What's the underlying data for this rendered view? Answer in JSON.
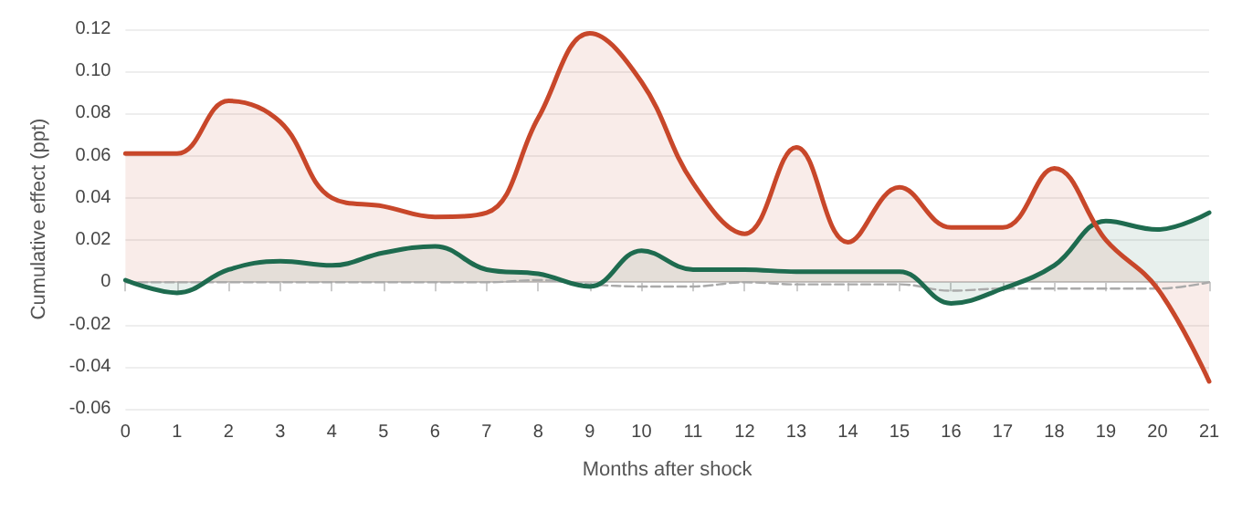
{
  "chart_data": {
    "type": "area",
    "xlabel": "Months after shock",
    "ylabel": "Cumulative effect (ppt)",
    "x": [
      0,
      1,
      2,
      3,
      4,
      5,
      6,
      7,
      8,
      9,
      10,
      11,
      12,
      13,
      14,
      15,
      16,
      17,
      18,
      19,
      20,
      21
    ],
    "series": [
      {
        "color": "#c8472a",
        "values": [
          0.061,
          0.061,
          0.086,
          0.076,
          0.04,
          0.036,
          0.031,
          0.033,
          0.078,
          0.118,
          0.095,
          0.047,
          0.023,
          0.064,
          0.019,
          0.045,
          0.026,
          0.026,
          0.054,
          0.02,
          -0.003,
          -0.047
        ]
      },
      {
        "color": "#1e6b4f",
        "values": [
          0.001,
          -0.005,
          0.006,
          0.01,
          0.008,
          0.014,
          0.017,
          0.006,
          0.004,
          -0.002,
          0.015,
          0.006,
          0.006,
          0.005,
          0.005,
          0.005,
          -0.01,
          -0.003,
          0.008,
          0.029,
          0.025,
          0.033
        ]
      },
      {
        "type": "line",
        "line_style": "dashed",
        "color": "#aaaaaa",
        "values": [
          0,
          0,
          0,
          0,
          0,
          0,
          0,
          0,
          0.001,
          -0.001,
          -0.002,
          -0.002,
          0,
          -0.001,
          -0.001,
          -0.001,
          -0.004,
          -0.003,
          -0.003,
          -0.003,
          -0.003,
          0
        ]
      }
    ],
    "xlim": [
      0,
      21
    ],
    "xticks": [
      0,
      1,
      2,
      3,
      4,
      5,
      6,
      7,
      8,
      9,
      10,
      11,
      12,
      13,
      14,
      15,
      16,
      17,
      18,
      19,
      20,
      21
    ],
    "ylim": [
      -0.06,
      0.12
    ],
    "yticks": [
      -0.06,
      -0.04,
      -0.02,
      0,
      0.02,
      0.04,
      0.06,
      0.08,
      {
        "value": 0.1,
        "label": "0.10"
      },
      0.12
    ],
    "grid": "y",
    "marker": "none"
  }
}
